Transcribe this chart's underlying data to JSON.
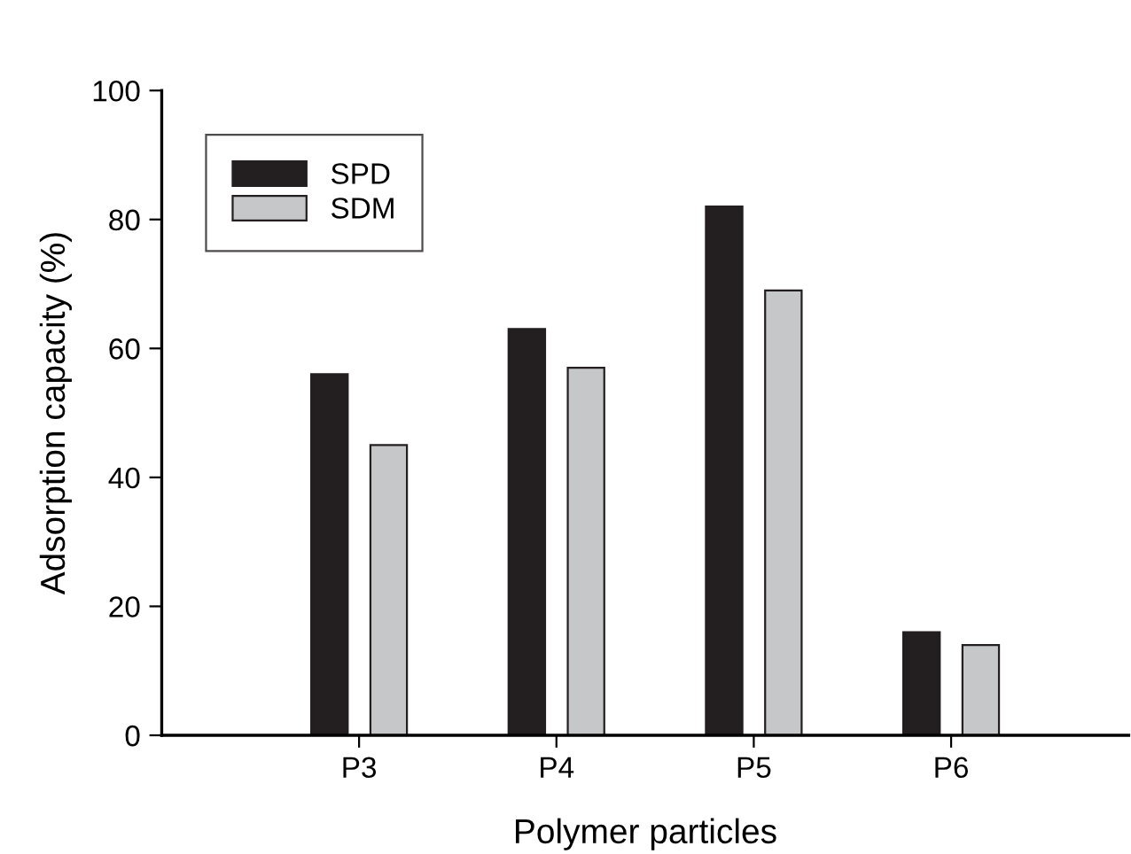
{
  "chart_data": {
    "type": "bar",
    "xlabel": "Polymer particles",
    "ylabel": "Adsorption capacity (%)",
    "categories": [
      "P3",
      "P4",
      "P5",
      "P6"
    ],
    "series": [
      {
        "name": "SPD",
        "color": "#231f20",
        "values": [
          56,
          63,
          82,
          16
        ]
      },
      {
        "name": "SDM",
        "color": "#c6c7c9",
        "values": [
          45,
          57,
          69,
          14
        ]
      }
    ],
    "ylim": [
      0,
      100
    ],
    "yticks": [
      0,
      20,
      40,
      60,
      80,
      100
    ],
    "grid": false,
    "legend": "top left"
  }
}
